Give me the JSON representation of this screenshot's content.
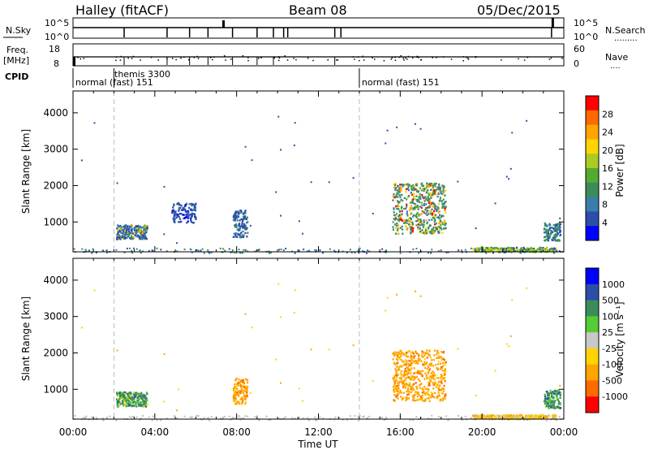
{
  "header": {
    "station": "Halley (fitACF)",
    "beam": "Beam 08",
    "date": "05/Dec/2015"
  },
  "status_panels": {
    "nsky_label": "N.Sky",
    "nsky_tick_top": "10^5",
    "nsky_tick_bottom": "10^0",
    "nsearch_label": "N.Search",
    "nsearch_tick_top": "10^5",
    "nsearch_tick_bottom": "10^0",
    "freq_label_1": "Freq.",
    "freq_label_2": "[MHz]",
    "freq_tick_top": "18",
    "freq_tick_bottom": "8",
    "nave_label": "Nave",
    "nave_tick_top": "60",
    "nave_tick_bottom": "0",
    "cpid_label": "CPID",
    "cpid_segments": [
      {
        "start_h": 0.0,
        "end_h": 14.0,
        "text": "normal (fast) 151"
      },
      {
        "start_h": 14.0,
        "end_h": 24.0,
        "text": "normal (fast) 151"
      }
    ],
    "cpid_event": {
      "time_h": 2.0,
      "text": "themis 3300"
    },
    "cpid_event_hours": [
      2.0,
      14.0
    ]
  },
  "colors": {
    "power": [
      "#0000ff",
      "#2b4fa8",
      "#3a7dab",
      "#3b8c5a",
      "#55aa30",
      "#aacc22",
      "#ffd400",
      "#ffa500",
      "#ff6a00",
      "#ff0000"
    ],
    "velocity": [
      "#0000ff",
      "#2b4fa8",
      "#3b8c5a",
      "#55cc33",
      "#c8c8c8",
      "#ffd400",
      "#ffa500",
      "#ff6a00",
      "#ff0000"
    ],
    "ground": "#bebebe"
  },
  "chart_data": [
    {
      "type": "heatmap",
      "panel": "power",
      "ylabel": "Slant Range [km]",
      "xlabel": "Time UT",
      "x_ticks": [
        "00:00",
        "04:00",
        "08:00",
        "12:00",
        "16:00",
        "20:00",
        "00:00"
      ],
      "xlim_hours": [
        0,
        24
      ],
      "ylim_km": [
        180,
        4600
      ],
      "y_ticks": [
        1000,
        2000,
        3000,
        4000
      ],
      "colorbar": {
        "label": "Power [dB]",
        "ticks": [
          "4",
          "8",
          "12",
          "16",
          "20",
          "24",
          "28"
        ],
        "range": [
          0,
          30
        ]
      },
      "clusters": [
        {
          "t_start": 2.1,
          "t_end": 3.6,
          "r_min": 550,
          "r_max": 950,
          "dominant": "blue-green",
          "peak": "orange"
        },
        {
          "t_start": 4.8,
          "t_end": 6.0,
          "r_min": 1000,
          "r_max": 1550,
          "dominant": "blue"
        },
        {
          "t_start": 7.8,
          "t_end": 8.5,
          "r_min": 600,
          "r_max": 1350,
          "dominant": "blue"
        },
        {
          "t_start": 15.6,
          "t_end": 18.2,
          "r_min": 700,
          "r_max": 2100,
          "dominant": "green",
          "peak": "orange/red"
        },
        {
          "t_start": 19.5,
          "t_end": 23.6,
          "r_min": 200,
          "r_max": 320,
          "dominant": "green-yellow"
        },
        {
          "t_start": 23.0,
          "t_end": 23.8,
          "r_min": 500,
          "r_max": 1000,
          "dominant": "green-blue"
        }
      ]
    },
    {
      "type": "heatmap",
      "panel": "velocity",
      "ylabel": "Slant Range [km]",
      "xlabel": "Time UT",
      "x_ticks": [
        "00:00",
        "04:00",
        "08:00",
        "12:00",
        "16:00",
        "20:00",
        "00:00"
      ],
      "xlim_hours": [
        0,
        24
      ],
      "ylim_km": [
        180,
        4600
      ],
      "y_ticks": [
        1000,
        2000,
        3000,
        4000
      ],
      "colorbar": {
        "label": "Velocity [m s⁻¹]",
        "ticks": [
          "1000",
          "500",
          "100",
          "25",
          "-25",
          "-100",
          "-500",
          "-1000"
        ]
      },
      "clusters": [
        {
          "t_start": 2.1,
          "t_end": 3.6,
          "r_min": 550,
          "r_max": 950,
          "dominant": "green/blue"
        },
        {
          "t_start": 7.8,
          "t_end": 8.5,
          "r_min": 600,
          "r_max": 1350,
          "dominant": "orange"
        },
        {
          "t_start": 15.6,
          "t_end": 18.2,
          "r_min": 700,
          "r_max": 2100,
          "dominant": "orange"
        },
        {
          "t_start": 19.5,
          "t_end": 23.6,
          "r_min": 200,
          "r_max": 320,
          "dominant": "yellow/orange"
        },
        {
          "t_start": 23.0,
          "t_end": 23.8,
          "r_min": 500,
          "r_max": 1000,
          "dominant": "green"
        }
      ]
    }
  ]
}
